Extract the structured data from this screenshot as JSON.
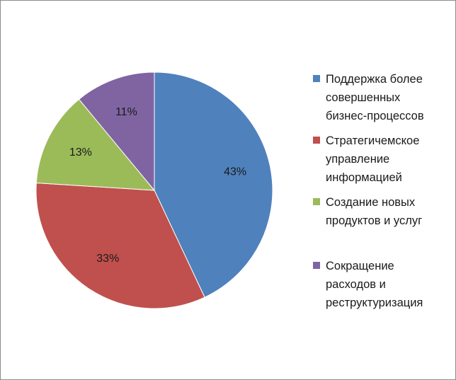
{
  "chart_data": {
    "type": "pie",
    "title": "",
    "categories": [
      "Поддержка более совершенных бизнес-процессов",
      "Стратегичемское управление информацией",
      "Создание новых продуктов и услуг",
      "Сокращение расходов и реструктуризация"
    ],
    "values": [
      43,
      33,
      13,
      11
    ],
    "data_labels": [
      "43%",
      "33%",
      "13%",
      "11%"
    ],
    "colors": [
      "#4f81bd",
      "#c0504d",
      "#9bbb59",
      "#8064a2"
    ],
    "legend_position": "right",
    "legend_lines": [
      "Поддержка более\nсовершенных\nбизнес-процессов",
      "Стратегичемское\nуправление\nинформацией",
      "Создание новых\nпродуктов и услуг",
      "Сокращение\nрасходов и\nреструктуризация"
    ]
  }
}
